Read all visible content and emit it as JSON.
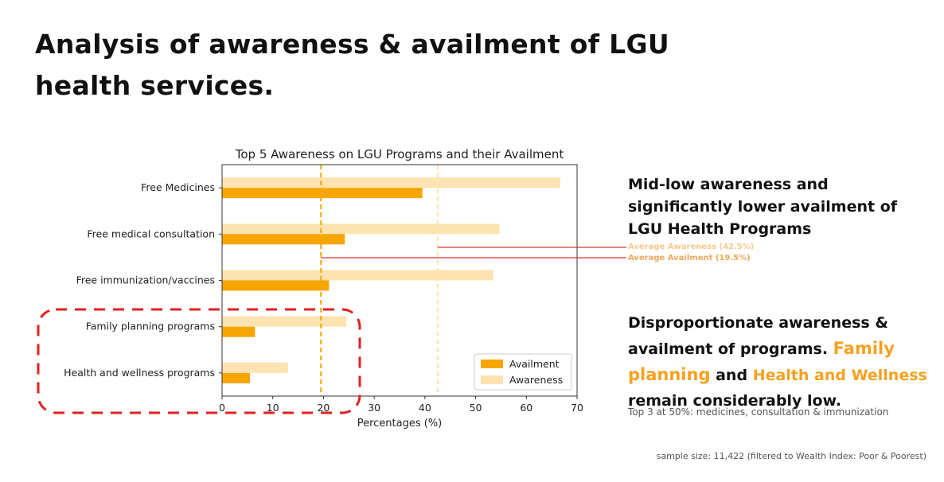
{
  "slide": {
    "title": "Analysis of awareness & availment of LGU health services.",
    "heading1": "Mid-low awareness and significantly lower availment of LGU Health Programs",
    "avg_awareness_label": "Average Awareness (42.5%)",
    "avg_availment_label": "Average Availment (19.5%)",
    "heading2_part1": "Disproportionate awareness & availment of programs.",
    "heading2_hl1": "Family planning",
    "heading2_and": "and",
    "heading2_hl2": "Health and Wellness",
    "heading2_part2": "remain considerably low.",
    "note": "Top 3 at 50%: medicines, consultation & immunization",
    "sample_size": "sample size: 11,422 (filtered to Wealth Index: Poor & Poorest)"
  },
  "colors": {
    "availment": "#f7a600",
    "awareness": "#fde3b0",
    "highlight": "#f7a11f",
    "dashed_box": "#e02020",
    "ref_line": "#d9342b"
  },
  "chart_data": {
    "type": "bar",
    "orientation": "horizontal",
    "title": "Top 5 Awareness on LGU Programs and their Availment",
    "xlabel": "Percentages (%)",
    "ylabel": "",
    "xlim": [
      0,
      70
    ],
    "xticks": [
      "0",
      "10",
      "20",
      "30",
      "40",
      "50",
      "60",
      "70"
    ],
    "categories": [
      "Free Medicines",
      "Free medical consultation",
      "Free immunization/vaccines",
      "Family planning programs",
      "Health and wellness programs"
    ],
    "series": [
      {
        "name": "Availment",
        "values": [
          39.5,
          24.2,
          21.1,
          6.5,
          5.5
        ]
      },
      {
        "name": "Awareness",
        "values": [
          66.7,
          54.7,
          53.5,
          24.5,
          13.0
        ]
      }
    ],
    "reference_lines": [
      {
        "value": 19.5
      },
      {
        "value": 42.5
      }
    ],
    "legend": "bottom-right",
    "grid": false
  }
}
